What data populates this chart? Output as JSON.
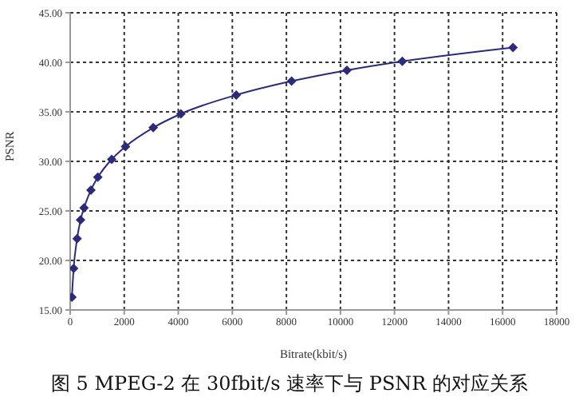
{
  "chart_data": {
    "type": "line",
    "xlabel": "Bitrate(kbit/s)",
    "ylabel": "PSNR",
    "annotations": [
      "图 5 MPEG-2 在 30fbit/s 速率下与 PSNR 的对应关系"
    ],
    "x": [
      64,
      128,
      256,
      384,
      512,
      768,
      1024,
      1536,
      2048,
      3072,
      4096,
      6144,
      8192,
      10240,
      12288,
      16384
    ],
    "series": [
      {
        "color": "#2b2b7a",
        "values": [
          16.3,
          19.2,
          22.2,
          24.1,
          25.3,
          27.1,
          28.4,
          30.2,
          31.5,
          33.4,
          34.8,
          36.7,
          38.1,
          39.2,
          40.1,
          41.5
        ]
      }
    ],
    "xlim": [
      0,
      18000
    ],
    "xticks": [
      0,
      2000,
      4000,
      6000,
      8000,
      10000,
      12000,
      14000,
      16000,
      18000
    ],
    "ylim": [
      15,
      45
    ],
    "yticks": [
      {
        "value": 15,
        "label": "15.00"
      },
      {
        "value": 20,
        "label": "20.00"
      },
      {
        "value": 25,
        "label": "25.00"
      },
      {
        "value": 30,
        "label": "30.00"
      },
      {
        "value": 35,
        "label": "35.00"
      },
      {
        "value": 40,
        "label": "40.00"
      },
      {
        "value": 45,
        "label": "45.00"
      }
    ],
    "grid": true,
    "marker": "diamond",
    "line_style": "solid",
    "legend": false
  }
}
